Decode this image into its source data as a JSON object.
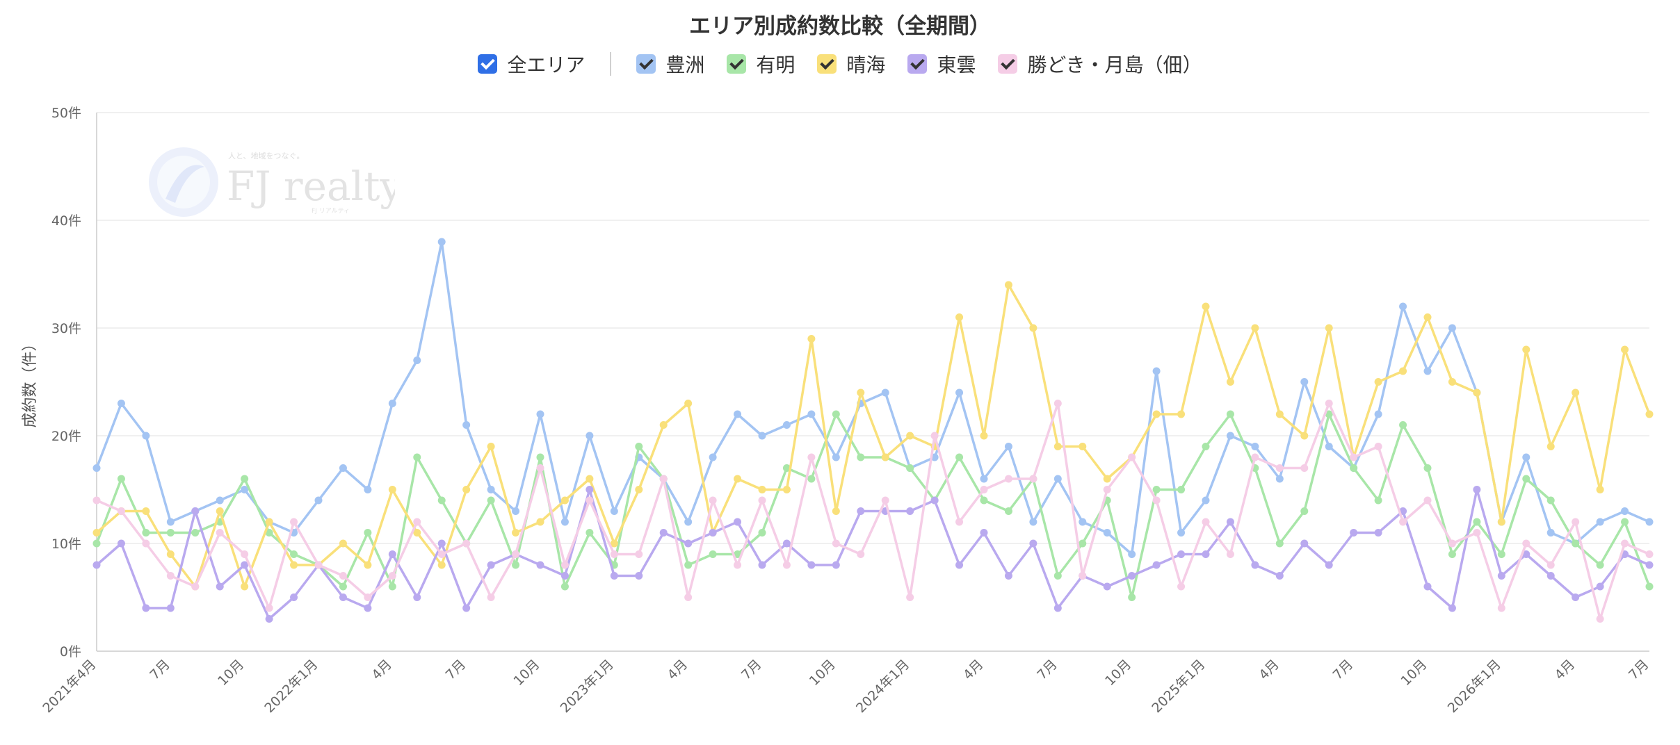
{
  "chart_data": {
    "type": "line",
    "title": "エリア別成約数比較（全期間）",
    "ylabel": "成約数（件）",
    "ylim": [
      0,
      50
    ],
    "y_ticks": [
      "0件",
      "10件",
      "20件",
      "30件",
      "40件",
      "50件"
    ],
    "grid": true,
    "legend_position": "top",
    "x": [
      "2021-04",
      "2021-05",
      "2021-06",
      "2021-07",
      "2021-08",
      "2021-09",
      "2021-10",
      "2021-11",
      "2021-12",
      "2022-01",
      "2022-02",
      "2022-03",
      "2022-04",
      "2022-05",
      "2022-06",
      "2022-07",
      "2022-08",
      "2022-09",
      "2022-10",
      "2022-11",
      "2022-12",
      "2023-01",
      "2023-02",
      "2023-03",
      "2023-04",
      "2023-05",
      "2023-06",
      "2023-07",
      "2023-08",
      "2023-09",
      "2023-10",
      "2023-11",
      "2023-12",
      "2024-01",
      "2024-02",
      "2024-03",
      "2024-04",
      "2024-05",
      "2024-06",
      "2024-07",
      "2024-08",
      "2024-09",
      "2024-10",
      "2024-11",
      "2024-12",
      "2025-01",
      "2025-02",
      "2025-03",
      "2025-04",
      "2025-05",
      "2025-06",
      "2025-07",
      "2025-08",
      "2025-09",
      "2025-10",
      "2025-11",
      "2025-12",
      "2026-01",
      "2026-02",
      "2026-03",
      "2026-04",
      "2026-05",
      "2026-06",
      "2026-07"
    ],
    "x_tick_labels": [
      {
        "index": 0,
        "label": "2021年4月"
      },
      {
        "index": 3,
        "label": "7月"
      },
      {
        "index": 6,
        "label": "10月"
      },
      {
        "index": 9,
        "label": "2022年1月"
      },
      {
        "index": 12,
        "label": "4月"
      },
      {
        "index": 15,
        "label": "7月"
      },
      {
        "index": 18,
        "label": "10月"
      },
      {
        "index": 21,
        "label": "2023年1月"
      },
      {
        "index": 24,
        "label": "4月"
      },
      {
        "index": 27,
        "label": "7月"
      },
      {
        "index": 30,
        "label": "10月"
      },
      {
        "index": 33,
        "label": "2024年1月"
      },
      {
        "index": 36,
        "label": "4月"
      },
      {
        "index": 39,
        "label": "7月"
      },
      {
        "index": 42,
        "label": "10月"
      },
      {
        "index": 45,
        "label": "2025年1月"
      },
      {
        "index": 48,
        "label": "4月"
      },
      {
        "index": 51,
        "label": "7月"
      },
      {
        "index": 54,
        "label": "10月"
      },
      {
        "index": 57,
        "label": "2026年1月"
      },
      {
        "index": 60,
        "label": "4月"
      },
      {
        "index": 63,
        "label": "7月"
      }
    ],
    "series": [
      {
        "name": "豊洲",
        "color": "#a3c4f3",
        "values": [
          17,
          23,
          20,
          12,
          13,
          14,
          15,
          12,
          11,
          14,
          17,
          15,
          23,
          27,
          38,
          21,
          15,
          13,
          22,
          12,
          20,
          13,
          18,
          16,
          12,
          18,
          22,
          20,
          21,
          22,
          18,
          23,
          24,
          17,
          18,
          24,
          16,
          19,
          12,
          16,
          12,
          11,
          9,
          26,
          11,
          14,
          20,
          19,
          16,
          25,
          19,
          17,
          22,
          32,
          26,
          30,
          24,
          12,
          18,
          11,
          10,
          12,
          13,
          12
        ]
      },
      {
        "name": "有明",
        "color": "#a8e6a8",
        "values": [
          10,
          16,
          11,
          11,
          11,
          12,
          16,
          11,
          9,
          8,
          6,
          11,
          6,
          18,
          14,
          10,
          14,
          8,
          18,
          6,
          11,
          8,
          19,
          16,
          8,
          9,
          9,
          11,
          17,
          16,
          22,
          18,
          18,
          17,
          14,
          18,
          14,
          13,
          16,
          7,
          10,
          14,
          5,
          15,
          15,
          19,
          22,
          17,
          10,
          13,
          22,
          17,
          14,
          21,
          17,
          9,
          12,
          9,
          16,
          14,
          10,
          8,
          12,
          6
        ]
      },
      {
        "name": "晴海",
        "color": "#f9e07a",
        "values": [
          11,
          13,
          13,
          9,
          6,
          13,
          6,
          12,
          8,
          8,
          10,
          8,
          15,
          11,
          8,
          15,
          19,
          11,
          12,
          14,
          16,
          10,
          15,
          21,
          23,
          11,
          16,
          15,
          15,
          29,
          13,
          24,
          18,
          20,
          19,
          31,
          20,
          34,
          30,
          19,
          19,
          16,
          18,
          22,
          22,
          32,
          25,
          30,
          22,
          20,
          30,
          18,
          25,
          26,
          31,
          25,
          24,
          12,
          28,
          19,
          24,
          15,
          28,
          22
        ]
      },
      {
        "name": "東雲",
        "color": "#b9a9ef",
        "values": [
          8,
          10,
          4,
          4,
          13,
          6,
          8,
          3,
          5,
          8,
          5,
          4,
          9,
          5,
          10,
          4,
          8,
          9,
          8,
          7,
          15,
          7,
          7,
          11,
          10,
          11,
          12,
          8,
          10,
          8,
          8,
          13,
          13,
          13,
          14,
          8,
          11,
          7,
          10,
          4,
          7,
          6,
          7,
          8,
          9,
          9,
          12,
          8,
          7,
          10,
          8,
          11,
          11,
          13,
          6,
          4,
          15,
          7,
          9,
          7,
          5,
          6,
          9,
          8
        ]
      },
      {
        "name": "勝どき・月島（佃）",
        "color": "#f5cde6",
        "values": [
          14,
          13,
          10,
          7,
          6,
          11,
          9,
          4,
          12,
          8,
          7,
          5,
          7,
          12,
          9,
          10,
          5,
          9,
          17,
          8,
          14,
          9,
          9,
          16,
          5,
          14,
          8,
          14,
          8,
          18,
          10,
          9,
          14,
          5,
          20,
          12,
          15,
          16,
          16,
          23,
          7,
          15,
          18,
          14,
          6,
          12,
          9,
          18,
          17,
          17,
          23,
          18,
          19,
          12,
          14,
          10,
          11,
          4,
          10,
          8,
          12,
          3,
          10,
          9
        ]
      }
    ]
  },
  "legend": {
    "all_label": "全エリア",
    "items": [
      {
        "label": "豊洲",
        "fill": "#a3c4f3",
        "check": "#333333"
      },
      {
        "label": "有明",
        "fill": "#a8e6a8",
        "check": "#333333"
      },
      {
        "label": "晴海",
        "fill": "#f9e07a",
        "check": "#333333"
      },
      {
        "label": "東雲",
        "fill": "#b9a9ef",
        "check": "#333333"
      },
      {
        "label": "勝どき・月島（佃）",
        "fill": "#f5cde6",
        "check": "#333333"
      }
    ],
    "all_color": "#2f6fe6"
  },
  "watermark": {
    "brand": "FJ realty",
    "tagline": "人と、地域をつなぐ。",
    "sub": "FJ リアルティ"
  }
}
